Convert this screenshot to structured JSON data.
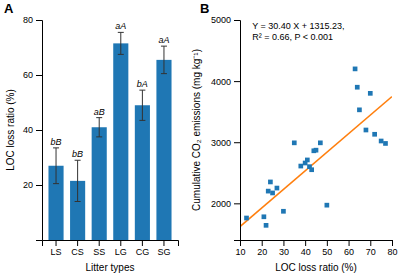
{
  "chart_data": [
    {
      "type": "bar",
      "title": "A",
      "categories": [
        "LS",
        "CS",
        "SS",
        "LG",
        "CG",
        "SG"
      ],
      "values": [
        27.0,
        21.5,
        41.0,
        71.5,
        49.0,
        65.5
      ],
      "errors": [
        6.5,
        7.5,
        3.5,
        4.0,
        5.5,
        5.0
      ],
      "annotations": [
        "bB",
        "bB",
        "aB",
        "aA",
        "bA",
        "aA"
      ],
      "x_label": "Litter types",
      "y_label": "LOC loss ratio (%)",
      "ylim": [
        0,
        80
      ],
      "yticks": [
        20,
        40,
        60,
        80
      ],
      "grid": false
    },
    {
      "type": "scatter",
      "title": "B",
      "series": [
        {
          "type": "scatter",
          "marker": "square",
          "x": [
            13,
            21,
            22,
            23,
            24,
            25,
            27,
            30,
            35,
            38,
            40,
            41,
            42,
            43,
            44,
            45,
            47,
            50,
            63,
            64,
            65,
            68,
            70,
            72,
            75,
            77
          ],
          "values": [
            1760,
            1780,
            1640,
            2200,
            2350,
            2170,
            2250,
            1870,
            2990,
            2610,
            2660,
            2710,
            2600,
            2550,
            2860,
            2870,
            2990,
            1970,
            4200,
            3900,
            3530,
            3200,
            3800,
            3130,
            3020,
            2980
          ]
        },
        {
          "type": "line",
          "line_style": "solid",
          "x": [
            10,
            80
          ],
          "values": [
            1619.23,
            3747.23
          ]
        }
      ],
      "annotations": [
        "Y = 30.40 X + 1315.23,",
        "R² = 0.66, P < 0.001"
      ],
      "x_label": "LOC loss ratio (%)",
      "y_label": "Cumulative CO₂ emissions (mg kg⁻¹)",
      "xlim": [
        10,
        80
      ],
      "xticks": [
        10,
        20,
        30,
        40,
        50,
        60,
        70,
        80
      ],
      "ylim": [
        1400,
        5000
      ],
      "yticks": [
        2000,
        3000,
        4000,
        5000
      ],
      "grid": false
    }
  ]
}
